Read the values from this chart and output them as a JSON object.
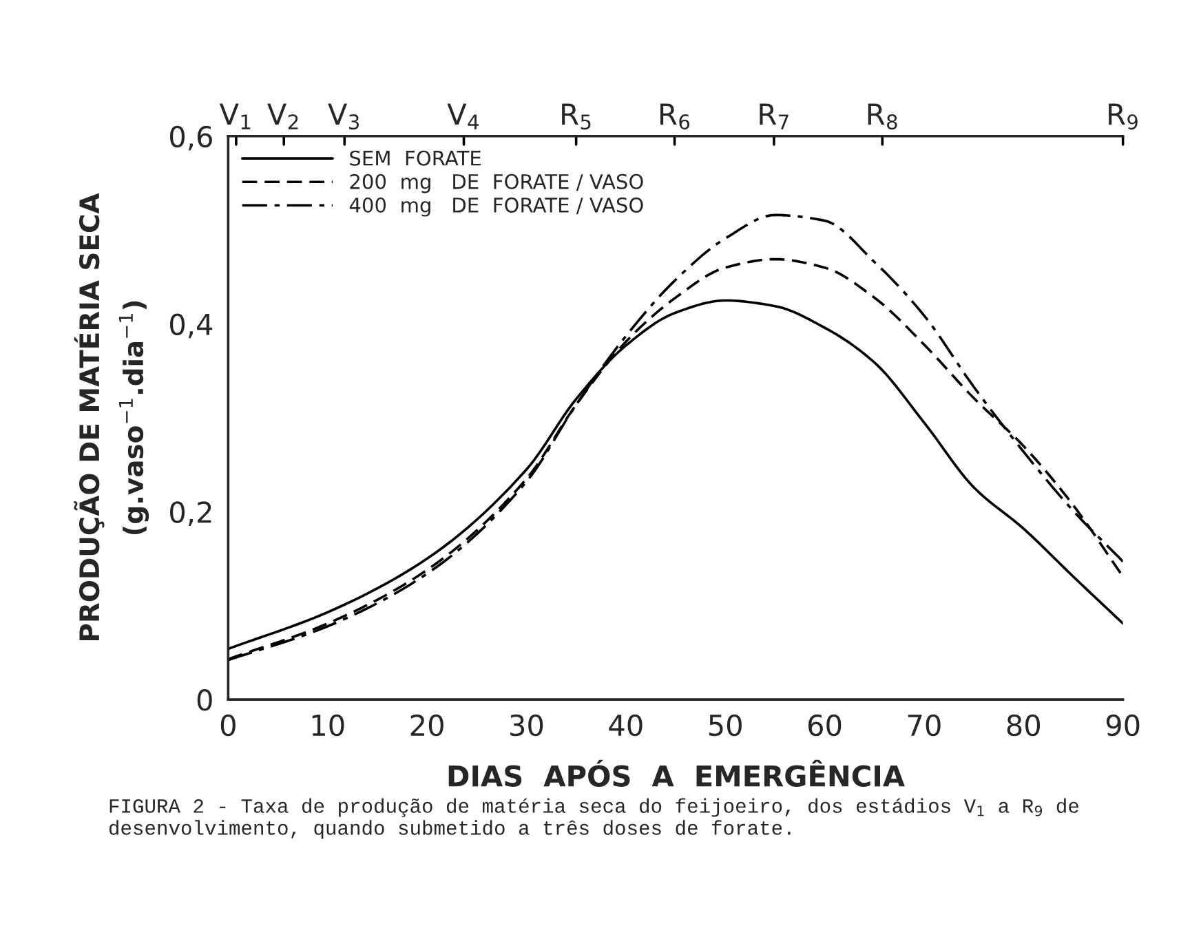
{
  "chart_data": {
    "type": "line",
    "xlabel": "DIAS  APÓS  A  EMERGÊNCIA",
    "ylabel": "PRODUÇÃO DE MATÉRIA SECA\n(g.vaso$^{−1}$.dia$^{−1}$)",
    "x": [
      0,
      10,
      20,
      30,
      35,
      40,
      45,
      50,
      55,
      60,
      65,
      70,
      75,
      80,
      85,
      90
    ],
    "series": [
      {
        "name": "SEM  FORATE",
        "color": "#000000",
        "line_style": "solid",
        "values": [
          0.054,
          0.093,
          0.15,
          0.245,
          0.32,
          0.377,
          0.412,
          0.425,
          0.419,
          0.396,
          0.359,
          0.295,
          0.226,
          0.182,
          0.131,
          0.081
        ]
      },
      {
        "name": "200  mg   DE  FORATE / VASO",
        "color": "#000000",
        "line_style": "dashed",
        "values": [
          0.043,
          0.081,
          0.138,
          0.235,
          0.314,
          0.381,
          0.428,
          0.46,
          0.469,
          0.46,
          0.428,
          0.378,
          0.321,
          0.27,
          0.207,
          0.131
        ]
      },
      {
        "name": "400  mg   DE  FORATE / VASO",
        "color": "#000000",
        "line_style": "dashdot",
        "values": [
          0.042,
          0.078,
          0.134,
          0.232,
          0.314,
          0.387,
          0.447,
          0.491,
          0.516,
          0.51,
          0.466,
          0.409,
          0.333,
          0.264,
          0.201,
          0.147
        ]
      }
    ],
    "xlim": [
      0,
      90
    ],
    "xticks": [
      0,
      10,
      20,
      30,
      40,
      50,
      60,
      70,
      80,
      90
    ],
    "ylim": [
      0,
      0.6
    ],
    "yticks": [
      0,
      {
        "value": 0.2,
        "label": "0,2"
      },
      {
        "value": 0.4,
        "label": "0,4"
      },
      {
        "value": 0.6,
        "label": "0,6"
      }
    ],
    "legend": "top left",
    "grid": false,
    "ref_lines": [
      {
        "axis": "x",
        "value": 0.8,
        "label": "V$_{1}$"
      },
      {
        "axis": "x",
        "value": 5.6,
        "label": "V$_{2}$"
      },
      {
        "axis": "x",
        "value": 11.7,
        "label": "V$_{3}$"
      },
      {
        "axis": "x",
        "value": 23.7,
        "label": "V$_{4}$"
      },
      {
        "axis": "x",
        "value": 35,
        "label": "R$_{5}$"
      },
      {
        "axis": "x",
        "value": 44.9,
        "label": "R$_{6}$"
      },
      {
        "axis": "x",
        "value": 54.9,
        "label": "R$_{7}$"
      },
      {
        "axis": "x",
        "value": 65.8,
        "label": "R$_{8}$"
      },
      {
        "axis": "x",
        "value": 90,
        "label": "R$_{9}$"
      }
    ],
    "annotations": [
      "FIGURA 2 - Taxa de produção de matéria seca do feijoeiro, dos estádios V$_{1}$ a R$_{9}$ de desenvolvimento, quando submetido a três doses de forate."
    ]
  }
}
